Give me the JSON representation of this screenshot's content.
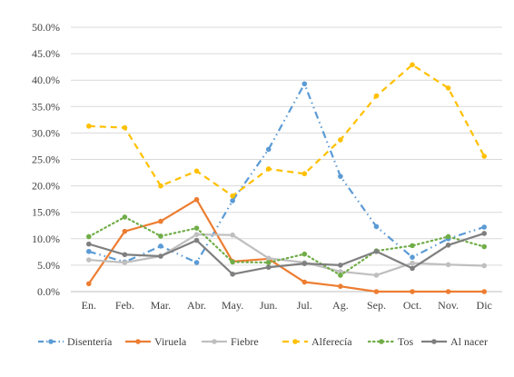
{
  "chart_data": {
    "type": "line",
    "title": "",
    "xlabel": "",
    "ylabel": "",
    "ylim": [
      0,
      0.5
    ],
    "yticks": [
      "0.0%",
      "5.0%",
      "10.0%",
      "15.0%",
      "20.0%",
      "25.0%",
      "30.0%",
      "35.0%",
      "40.0%",
      "45.0%",
      "50.0%"
    ],
    "categories": [
      "En.",
      "Feb.",
      "Mar.",
      "Abr.",
      "May.",
      "Jun.",
      "Jul.",
      "Ag.",
      "Sep.",
      "Oct.",
      "Nov.",
      "Dic"
    ],
    "grid": "horizontal",
    "legend_position": "bottom",
    "series": [
      {
        "name": "Disentería",
        "color": "#5B9BD5",
        "dash": "dash-dot-dot",
        "values": [
          0.076,
          0.056,
          0.086,
          0.055,
          0.172,
          0.269,
          0.393,
          0.218,
          0.123,
          0.065,
          0.1,
          0.122
        ]
      },
      {
        "name": "Viruela",
        "color": "#ED7D31",
        "dash": "solid",
        "values": [
          0.015,
          0.114,
          0.133,
          0.174,
          0.057,
          0.062,
          0.018,
          0.01,
          0.0,
          0.0,
          0.0,
          0.0
        ]
      },
      {
        "name": "Fiebre",
        "color": "#BFBFBF",
        "dash": "solid",
        "values": [
          0.06,
          0.055,
          0.067,
          0.108,
          0.107,
          0.063,
          0.055,
          0.038,
          0.031,
          0.054,
          0.051,
          0.049
        ]
      },
      {
        "name": "Alferecía",
        "color": "#FFC000",
        "dash": "dashed",
        "values": [
          0.313,
          0.31,
          0.2,
          0.228,
          0.181,
          0.232,
          0.223,
          0.287,
          0.37,
          0.429,
          0.385,
          0.256
        ]
      },
      {
        "name": "Tos",
        "color": "#70AD47",
        "dash": "dotted",
        "values": [
          0.104,
          0.141,
          0.105,
          0.12,
          0.056,
          0.055,
          0.071,
          0.031,
          0.077,
          0.087,
          0.104,
          0.085
        ]
      },
      {
        "name": "Al nacer",
        "color": "#7F7F7F",
        "dash": "solid",
        "values": [
          0.09,
          0.07,
          0.067,
          0.097,
          0.033,
          0.046,
          0.053,
          0.05,
          0.076,
          0.044,
          0.088,
          0.11
        ]
      }
    ]
  }
}
